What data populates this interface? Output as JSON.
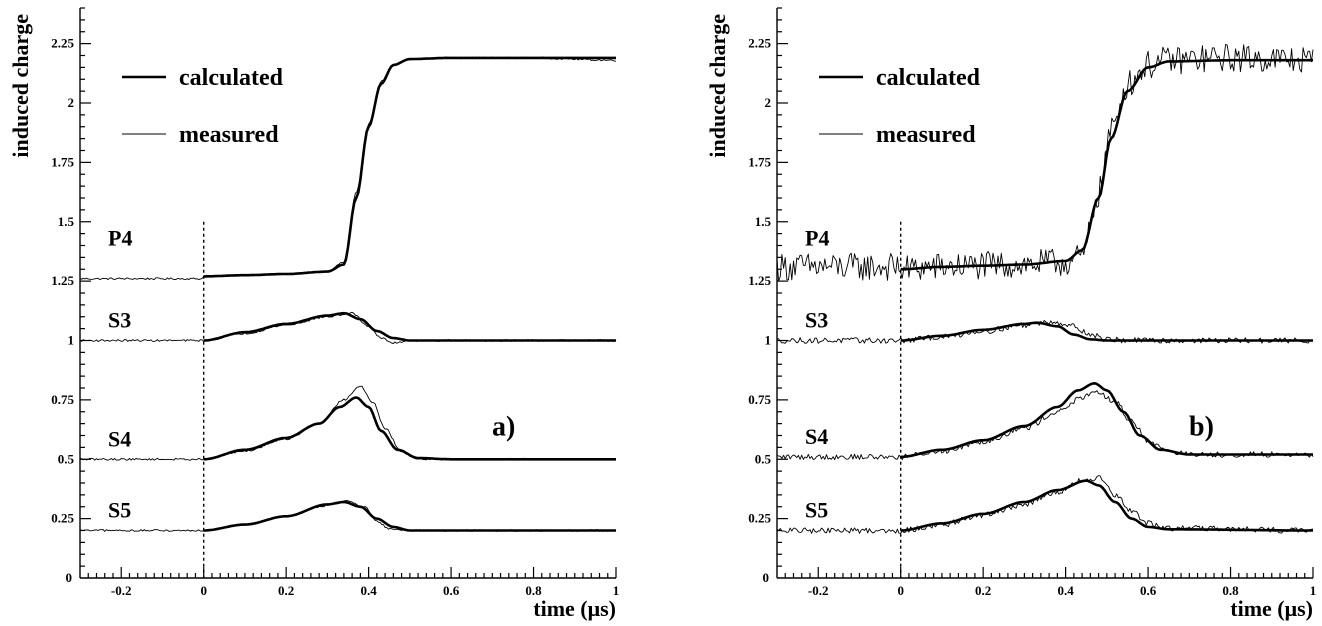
{
  "chart_data": [
    {
      "type": "line",
      "panel_label": "a)",
      "xlabel": "time (μs)",
      "ylabel": "induced charge",
      "xlim": [
        -0.3,
        1.0
      ],
      "ylim": [
        0,
        2.4
      ],
      "xticks": [
        -0.2,
        0,
        0.2,
        0.4,
        0.6,
        0.8,
        1
      ],
      "xtick_labels": [
        "-0.2",
        "0",
        "0.2",
        "0.4",
        "0.6",
        "0.8",
        "1"
      ],
      "yticks": [
        0.25,
        0.5,
        0.75,
        1,
        1.25,
        1.5,
        1.75,
        2,
        2.25
      ],
      "ytick_labels": [
        "0.25",
        "0.5",
        "0.75",
        "1",
        "1.25",
        "1.5",
        "1.75",
        "2",
        "2.25"
      ],
      "axis_origin_label": "0",
      "legend": {
        "calculated": "calculated",
        "measured": "measured",
        "position": "top-left"
      },
      "noise_amplitude": 0.004,
      "vertical_marker_x": 0,
      "series": [
        {
          "name": "P4",
          "baseline": 1.26,
          "calc_start": 1.27,
          "peak_time": 0.4,
          "amplitude": 0.92,
          "peak_value": 2.19,
          "kind": "step",
          "calc": [
            [
              0,
              1.27
            ],
            [
              0.1,
              1.275
            ],
            [
              0.2,
              1.28
            ],
            [
              0.3,
              1.29
            ],
            [
              0.34,
              1.32
            ],
            [
              0.37,
              1.6
            ],
            [
              0.4,
              1.9
            ],
            [
              0.43,
              2.08
            ],
            [
              0.46,
              2.16
            ],
            [
              0.5,
              2.185
            ],
            [
              0.6,
              2.19
            ],
            [
              0.8,
              2.19
            ],
            [
              1.0,
              2.19
            ]
          ],
          "meas": [
            [
              0,
              1.27
            ],
            [
              0.1,
              1.275
            ],
            [
              0.2,
              1.28
            ],
            [
              0.3,
              1.29
            ],
            [
              0.34,
              1.33
            ],
            [
              0.37,
              1.62
            ],
            [
              0.4,
              1.91
            ],
            [
              0.43,
              2.09
            ],
            [
              0.46,
              2.16
            ],
            [
              0.5,
              2.185
            ],
            [
              0.6,
              2.19
            ],
            [
              0.8,
              2.19
            ],
            [
              1.0,
              2.18
            ]
          ]
        },
        {
          "name": "S3",
          "baseline": 1.0,
          "peak_time": 0.34,
          "peak_value": 1.115,
          "kind": "bipolar",
          "calc": [
            [
              0,
              1.0
            ],
            [
              0.1,
              1.035
            ],
            [
              0.2,
              1.07
            ],
            [
              0.3,
              1.105
            ],
            [
              0.34,
              1.115
            ],
            [
              0.38,
              1.09
            ],
            [
              0.42,
              1.04
            ],
            [
              0.46,
              1.01
            ],
            [
              0.5,
              1.0
            ],
            [
              1.0,
              1.0
            ]
          ],
          "meas": [
            [
              0,
              1.0
            ],
            [
              0.1,
              1.03
            ],
            [
              0.2,
              1.065
            ],
            [
              0.3,
              1.1
            ],
            [
              0.36,
              1.115
            ],
            [
              0.4,
              1.06
            ],
            [
              0.43,
              1.01
            ],
            [
              0.46,
              0.99
            ],
            [
              0.5,
              1.0
            ],
            [
              1.0,
              1.0
            ]
          ]
        },
        {
          "name": "S4",
          "baseline": 0.5,
          "peak_time": 0.37,
          "peak_value": 0.76,
          "kind": "bipolar",
          "calc": [
            [
              0,
              0.5
            ],
            [
              0.1,
              0.54
            ],
            [
              0.2,
              0.59
            ],
            [
              0.28,
              0.65
            ],
            [
              0.33,
              0.72
            ],
            [
              0.37,
              0.76
            ],
            [
              0.4,
              0.72
            ],
            [
              0.43,
              0.62
            ],
            [
              0.47,
              0.54
            ],
            [
              0.52,
              0.505
            ],
            [
              0.6,
              0.5
            ],
            [
              1.0,
              0.5
            ]
          ],
          "meas": [
            [
              0,
              0.5
            ],
            [
              0.1,
              0.535
            ],
            [
              0.2,
              0.585
            ],
            [
              0.28,
              0.65
            ],
            [
              0.34,
              0.75
            ],
            [
              0.38,
              0.81
            ],
            [
              0.41,
              0.74
            ],
            [
              0.44,
              0.63
            ],
            [
              0.48,
              0.53
            ],
            [
              0.52,
              0.5
            ],
            [
              0.6,
              0.5
            ],
            [
              1.0,
              0.5
            ]
          ]
        },
        {
          "name": "S5",
          "baseline": 0.2,
          "peak_time": 0.34,
          "peak_value": 0.32,
          "kind": "bipolar",
          "calc": [
            [
              0,
              0.2
            ],
            [
              0.1,
              0.225
            ],
            [
              0.2,
              0.26
            ],
            [
              0.3,
              0.31
            ],
            [
              0.34,
              0.32
            ],
            [
              0.38,
              0.3
            ],
            [
              0.42,
              0.25
            ],
            [
              0.46,
              0.215
            ],
            [
              0.5,
              0.2
            ],
            [
              1.0,
              0.2
            ]
          ],
          "meas": [
            [
              0,
              0.2
            ],
            [
              0.1,
              0.225
            ],
            [
              0.2,
              0.26
            ],
            [
              0.3,
              0.305
            ],
            [
              0.35,
              0.325
            ],
            [
              0.39,
              0.3
            ],
            [
              0.42,
              0.24
            ],
            [
              0.45,
              0.205
            ],
            [
              0.5,
              0.2
            ],
            [
              1.0,
              0.2
            ]
          ]
        }
      ]
    },
    {
      "type": "line",
      "panel_label": "b)",
      "xlabel": "time (μs)",
      "ylabel": "induced charge",
      "xlim": [
        -0.3,
        1.0
      ],
      "ylim": [
        0,
        2.4
      ],
      "xticks": [
        -0.2,
        0,
        0.2,
        0.4,
        0.6,
        0.8,
        1
      ],
      "xtick_labels": [
        "-0.2",
        "0",
        "0.2",
        "0.4",
        "0.6",
        "0.8",
        "1"
      ],
      "yticks": [
        0.25,
        0.5,
        0.75,
        1,
        1.25,
        1.5,
        1.75,
        2,
        2.25
      ],
      "ytick_labels": [
        "0.25",
        "0.5",
        "0.75",
        "1",
        "1.25",
        "1.5",
        "1.75",
        "2",
        "2.25"
      ],
      "axis_origin_label": "0",
      "legend": {
        "calculated": "calculated",
        "measured": "measured",
        "position": "top-left"
      },
      "noise_amplitude": 0.012,
      "vertical_marker_x": 0,
      "series": [
        {
          "name": "P4",
          "baseline": 1.31,
          "calc_start": 1.3,
          "peak_time": 0.51,
          "peak_value": 2.18,
          "kind": "step",
          "noise_scale": 5,
          "calc": [
            [
              0,
              1.3
            ],
            [
              0.1,
              1.31
            ],
            [
              0.2,
              1.315
            ],
            [
              0.3,
              1.32
            ],
            [
              0.4,
              1.335
            ],
            [
              0.44,
              1.38
            ],
            [
              0.48,
              1.6
            ],
            [
              0.51,
              1.85
            ],
            [
              0.55,
              2.05
            ],
            [
              0.6,
              2.15
            ],
            [
              0.65,
              2.175
            ],
            [
              0.8,
              2.18
            ],
            [
              1.0,
              2.18
            ]
          ],
          "meas": [
            [
              0,
              1.3
            ],
            [
              0.1,
              1.31
            ],
            [
              0.2,
              1.315
            ],
            [
              0.3,
              1.32
            ],
            [
              0.4,
              1.33
            ],
            [
              0.44,
              1.35
            ],
            [
              0.48,
              1.62
            ],
            [
              0.51,
              1.88
            ],
            [
              0.55,
              2.08
            ],
            [
              0.6,
              2.16
            ],
            [
              0.65,
              2.18
            ],
            [
              0.8,
              2.19
            ],
            [
              1.0,
              2.18
            ]
          ]
        },
        {
          "name": "S3",
          "baseline": 1.0,
          "peak_time": 0.33,
          "peak_value": 1.075,
          "kind": "bipolar",
          "calc": [
            [
              0,
              1.0
            ],
            [
              0.1,
              1.02
            ],
            [
              0.2,
              1.045
            ],
            [
              0.3,
              1.07
            ],
            [
              0.33,
              1.075
            ],
            [
              0.38,
              1.06
            ],
            [
              0.42,
              1.025
            ],
            [
              0.46,
              1.005
            ],
            [
              0.5,
              1.0
            ],
            [
              1.0,
              1.0
            ]
          ],
          "meas": [
            [
              0,
              1.0
            ],
            [
              0.1,
              1.015
            ],
            [
              0.2,
              1.04
            ],
            [
              0.3,
              1.065
            ],
            [
              0.37,
              1.08
            ],
            [
              0.42,
              1.06
            ],
            [
              0.46,
              1.025
            ],
            [
              0.5,
              1.005
            ],
            [
              0.55,
              1.0
            ],
            [
              1.0,
              1.0
            ]
          ]
        },
        {
          "name": "S4",
          "baseline": 0.51,
          "peak_time": 0.47,
          "peak_value": 0.82,
          "kind": "bipolar",
          "calc": [
            [
              0,
              0.51
            ],
            [
              0.1,
              0.54
            ],
            [
              0.2,
              0.58
            ],
            [
              0.3,
              0.64
            ],
            [
              0.38,
              0.72
            ],
            [
              0.43,
              0.79
            ],
            [
              0.47,
              0.82
            ],
            [
              0.5,
              0.79
            ],
            [
              0.54,
              0.7
            ],
            [
              0.58,
              0.6
            ],
            [
              0.63,
              0.54
            ],
            [
              0.7,
              0.52
            ],
            [
              1.0,
              0.52
            ]
          ],
          "meas": [
            [
              0,
              0.51
            ],
            [
              0.1,
              0.535
            ],
            [
              0.2,
              0.575
            ],
            [
              0.3,
              0.63
            ],
            [
              0.38,
              0.7
            ],
            [
              0.44,
              0.76
            ],
            [
              0.48,
              0.78
            ],
            [
              0.52,
              0.74
            ],
            [
              0.56,
              0.66
            ],
            [
              0.6,
              0.58
            ],
            [
              0.64,
              0.54
            ],
            [
              0.7,
              0.52
            ],
            [
              1.0,
              0.52
            ]
          ]
        },
        {
          "name": "S5",
          "baseline": 0.2,
          "peak_time": 0.45,
          "peak_value": 0.41,
          "kind": "bipolar",
          "calc": [
            [
              0,
              0.2
            ],
            [
              0.1,
              0.23
            ],
            [
              0.2,
              0.27
            ],
            [
              0.3,
              0.32
            ],
            [
              0.38,
              0.37
            ],
            [
              0.45,
              0.41
            ],
            [
              0.48,
              0.39
            ],
            [
              0.52,
              0.32
            ],
            [
              0.56,
              0.25
            ],
            [
              0.6,
              0.215
            ],
            [
              0.65,
              0.205
            ],
            [
              1.0,
              0.2
            ]
          ],
          "meas": [
            [
              0,
              0.2
            ],
            [
              0.1,
              0.225
            ],
            [
              0.2,
              0.265
            ],
            [
              0.3,
              0.31
            ],
            [
              0.38,
              0.36
            ],
            [
              0.44,
              0.41
            ],
            [
              0.48,
              0.42
            ],
            [
              0.52,
              0.35
            ],
            [
              0.56,
              0.28
            ],
            [
              0.6,
              0.23
            ],
            [
              0.65,
              0.21
            ],
            [
              1.0,
              0.2
            ]
          ]
        }
      ]
    }
  ]
}
